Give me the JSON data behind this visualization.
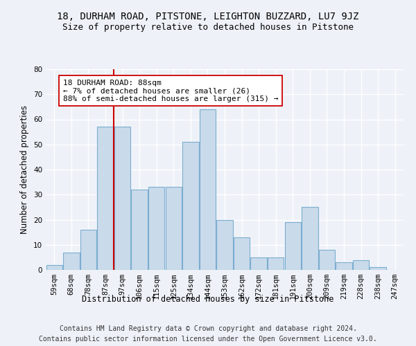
{
  "title": "18, DURHAM ROAD, PITSTONE, LEIGHTON BUZZARD, LU7 9JZ",
  "subtitle": "Size of property relative to detached houses in Pitstone",
  "xlabel": "Distribution of detached houses by size in Pitstone",
  "ylabel": "Number of detached properties",
  "categories": [
    "59sqm",
    "68sqm",
    "78sqm",
    "87sqm",
    "97sqm",
    "106sqm",
    "115sqm",
    "125sqm",
    "134sqm",
    "144sqm",
    "153sqm",
    "162sqm",
    "172sqm",
    "181sqm",
    "191sqm",
    "200sqm",
    "209sqm",
    "219sqm",
    "228sqm",
    "238sqm",
    "247sqm"
  ],
  "values": [
    2,
    7,
    16,
    57,
    57,
    32,
    33,
    33,
    51,
    64,
    20,
    13,
    5,
    5,
    19,
    25,
    8,
    3,
    4,
    1,
    0
  ],
  "bar_color": "#c9daea",
  "bar_edge_color": "#7aadd0",
  "vline_x": 3.5,
  "vline_color": "#cc0000",
  "annotation_text": "18 DURHAM ROAD: 88sqm\n← 7% of detached houses are smaller (26)\n88% of semi-detached houses are larger (315) →",
  "annotation_box_color": "white",
  "annotation_box_edge_color": "#cc0000",
  "ylim": [
    0,
    80
  ],
  "yticks": [
    0,
    10,
    20,
    30,
    40,
    50,
    60,
    70,
    80
  ],
  "footer1": "Contains HM Land Registry data © Crown copyright and database right 2024.",
  "footer2": "Contains public sector information licensed under the Open Government Licence v3.0.",
  "background_color": "#eef2f8",
  "plot_background_color": "#eef2f8",
  "grid_color": "white",
  "title_fontsize": 10,
  "subtitle_fontsize": 9,
  "axis_label_fontsize": 8.5,
  "tick_fontsize": 7.5,
  "annotation_fontsize": 8,
  "footer_fontsize": 7
}
